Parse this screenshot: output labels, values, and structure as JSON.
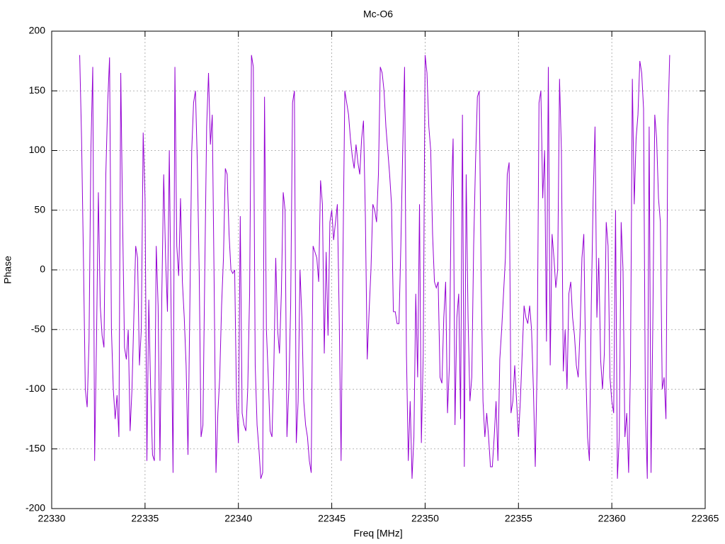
{
  "chart_data": {
    "type": "line",
    "title": "Mc-O6",
    "x_label": "Freq [MHz]",
    "y_label": "Phase",
    "color": "#9400d3",
    "grid": true,
    "xlim": [
      22330,
      22365
    ],
    "xticks": [
      22330,
      22335,
      22340,
      22345,
      22350,
      22355,
      22360,
      22365
    ],
    "ylim": [
      -200,
      200
    ],
    "yticks": [
      -200,
      -150,
      -100,
      -50,
      0,
      50,
      100,
      150,
      200
    ],
    "x": [
      22331.5,
      22331.6,
      22331.7,
      22331.8,
      22331.9,
      22332.0,
      22332.1,
      22332.2,
      22332.3,
      22332.4,
      22332.5,
      22332.6,
      22332.7,
      22332.8,
      22332.9,
      22333.0,
      22333.1,
      22333.2,
      22333.3,
      22333.4,
      22333.5,
      22333.6,
      22333.7,
      22333.8,
      22333.9,
      22334.0,
      22334.1,
      22334.2,
      22334.3,
      22334.4,
      22334.5,
      22334.6,
      22334.7,
      22334.8,
      22334.9,
      22335.0,
      22335.1,
      22335.2,
      22335.3,
      22335.4,
      22335.5,
      22335.6,
      22335.7,
      22335.8,
      22335.9,
      22336.0,
      22336.1,
      22336.2,
      22336.3,
      22336.4,
      22336.5,
      22336.6,
      22336.7,
      22336.8,
      22336.9,
      22337.0,
      22337.1,
      22337.2,
      22337.3,
      22337.4,
      22337.5,
      22337.6,
      22337.7,
      22337.8,
      22337.9,
      22338.0,
      22338.1,
      22338.2,
      22338.3,
      22338.4,
      22338.5,
      22338.6,
      22338.7,
      22338.8,
      22338.9,
      22339.0,
      22339.1,
      22339.2,
      22339.3,
      22339.4,
      22339.5,
      22339.6,
      22339.7,
      22339.8,
      22339.9,
      22340.0,
      22340.1,
      22340.2,
      22340.3,
      22340.4,
      22340.5,
      22340.6,
      22340.7,
      22340.8,
      22340.9,
      22341.0,
      22341.1,
      22341.2,
      22341.3,
      22341.4,
      22341.5,
      22341.6,
      22341.7,
      22341.8,
      22341.9,
      22342.0,
      22342.1,
      22342.2,
      22342.3,
      22342.4,
      22342.5,
      22342.6,
      22342.7,
      22342.8,
      22342.9,
      22343.0,
      22343.1,
      22343.2,
      22343.3,
      22343.4,
      22343.5,
      22343.6,
      22343.7,
      22343.8,
      22343.9,
      22344.0,
      22344.1,
      22344.2,
      22344.3,
      22344.4,
      22344.5,
      22344.6,
      22344.7,
      22344.8,
      22344.9,
      22345.0,
      22345.1,
      22345.2,
      22345.3,
      22345.4,
      22345.5,
      22345.6,
      22345.7,
      22345.8,
      22345.9,
      22346.0,
      22346.1,
      22346.2,
      22346.3,
      22346.4,
      22346.5,
      22346.6,
      22346.7,
      22346.8,
      22346.9,
      22347.0,
      22347.1,
      22347.2,
      22347.3,
      22347.4,
      22347.5,
      22347.6,
      22347.7,
      22347.8,
      22347.9,
      22348.0,
      22348.1,
      22348.2,
      22348.3,
      22348.4,
      22348.5,
      22348.6,
      22348.7,
      22348.8,
      22348.9,
      22349.0,
      22349.1,
      22349.2,
      22349.3,
      22349.4,
      22349.5,
      22349.6,
      22349.7,
      22349.8,
      22349.9,
      22350.0,
      22350.1,
      22350.2,
      22350.3,
      22350.4,
      22350.5,
      22350.6,
      22350.7,
      22350.8,
      22350.9,
      22351.0,
      22351.1,
      22351.2,
      22351.3,
      22351.4,
      22351.5,
      22351.6,
      22351.7,
      22351.8,
      22351.9,
      22352.0,
      22352.1,
      22352.2,
      22352.3,
      22352.4,
      22352.5,
      22352.6,
      22352.7,
      22352.8,
      22352.9,
      22353.0,
      22353.1,
      22353.2,
      22353.3,
      22353.4,
      22353.5,
      22353.6,
      22353.7,
      22353.8,
      22353.9,
      22354.0,
      22354.1,
      22354.2,
      22354.3,
      22354.4,
      22354.5,
      22354.6,
      22354.7,
      22354.8,
      22354.9,
      22355.0,
      22355.1,
      22355.2,
      22355.3,
      22355.4,
      22355.5,
      22355.6,
      22355.7,
      22355.8,
      22355.9,
      22356.0,
      22356.1,
      22356.2,
      22356.3,
      22356.4,
      22356.5,
      22356.6,
      22356.7,
      22356.8,
      22356.9,
      22357.0,
      22357.1,
      22357.2,
      22357.3,
      22357.4,
      22357.5,
      22357.6,
      22357.7,
      22357.8,
      22357.9,
      22358.0,
      22358.1,
      22358.2,
      22358.3,
      22358.4,
      22358.5,
      22358.6,
      22358.7,
      22358.8,
      22358.9,
      22359.0,
      22359.1,
      22359.2,
      22359.3,
      22359.4,
      22359.5,
      22359.6,
      22359.7,
      22359.8,
      22359.9,
      22360.0,
      22360.1,
      22360.2,
      22360.3,
      22360.4,
      22360.5,
      22360.6,
      22360.7,
      22360.8,
      22360.9,
      22361.0,
      22361.1,
      22361.2,
      22361.3,
      22361.4,
      22361.5,
      22361.6,
      22361.7,
      22361.8,
      22361.9,
      22362.0,
      22362.1,
      22362.2,
      22362.3,
      22362.4,
      22362.5,
      22362.6,
      22362.7,
      22362.8,
      22362.9,
      22363.0,
      22363.1
    ],
    "values": [
      180,
      110,
      10,
      -100,
      -115,
      -60,
      100,
      170,
      -160,
      -60,
      65,
      -30,
      -55,
      -65,
      80,
      140,
      178,
      -50,
      -100,
      -125,
      -105,
      -140,
      165,
      40,
      -65,
      -75,
      -50,
      -135,
      -100,
      -40,
      20,
      10,
      -80,
      -50,
      115,
      60,
      -160,
      -25,
      -100,
      -155,
      -160,
      20,
      -30,
      -160,
      -20,
      80,
      10,
      -35,
      100,
      -40,
      -170,
      170,
      20,
      -5,
      60,
      -10,
      -40,
      -80,
      -155,
      -30,
      100,
      140,
      150,
      90,
      0,
      -140,
      -130,
      0,
      120,
      165,
      105,
      130,
      -10,
      -170,
      -120,
      -90,
      -30,
      10,
      85,
      80,
      30,
      0,
      -3,
      0,
      -110,
      -145,
      45,
      -120,
      -130,
      -135,
      -100,
      -20,
      180,
      170,
      -80,
      -130,
      -150,
      -175,
      -170,
      145,
      -50,
      -90,
      -135,
      -140,
      -80,
      10,
      -50,
      -70,
      -20,
      65,
      50,
      -140,
      -100,
      -30,
      140,
      150,
      -145,
      -110,
      0,
      -40,
      -110,
      -130,
      -140,
      -160,
      -170,
      20,
      15,
      10,
      -10,
      75,
      55,
      -70,
      15,
      -55,
      40,
      50,
      25,
      40,
      55,
      -40,
      -160,
      10,
      150,
      140,
      130,
      110,
      95,
      85,
      105,
      90,
      80,
      110,
      125,
      45,
      -75,
      -35,
      0,
      55,
      50,
      40,
      80,
      170,
      165,
      150,
      120,
      100,
      80,
      55,
      -35,
      -35,
      -45,
      -45,
      20,
      100,
      170,
      -70,
      -160,
      -110,
      -175,
      -140,
      -20,
      -90,
      55,
      -145,
      -70,
      180,
      165,
      120,
      100,
      30,
      -10,
      -15,
      -10,
      -90,
      -95,
      -40,
      -10,
      -120,
      -80,
      60,
      110,
      -130,
      -40,
      -20,
      -125,
      130,
      -165,
      80,
      -40,
      -110,
      -90,
      20,
      90,
      145,
      150,
      -5,
      -110,
      -140,
      -120,
      -140,
      -165,
      -165,
      -140,
      -110,
      -160,
      -75,
      -50,
      -20,
      10,
      80,
      90,
      -120,
      -110,
      -80,
      -110,
      -140,
      -110,
      -70,
      -30,
      -40,
      -45,
      -30,
      -50,
      -100,
      -165,
      -80,
      140,
      150,
      60,
      100,
      -60,
      170,
      -80,
      30,
      10,
      -15,
      0,
      160,
      100,
      -85,
      -50,
      -100,
      -20,
      -10,
      -40,
      -55,
      -80,
      -90,
      -50,
      10,
      30,
      -80,
      -140,
      -160,
      -30,
      60,
      120,
      -40,
      10,
      -75,
      -100,
      -70,
      40,
      20,
      -90,
      -110,
      -120,
      50,
      -175,
      -140,
      40,
      0,
      -140,
      -120,
      -170,
      -80,
      160,
      55,
      110,
      130,
      175,
      165,
      135,
      -120,
      -175,
      120,
      -170,
      -40,
      130,
      110,
      60,
      40,
      -100,
      -90,
      -125,
      120,
      180
    ]
  }
}
